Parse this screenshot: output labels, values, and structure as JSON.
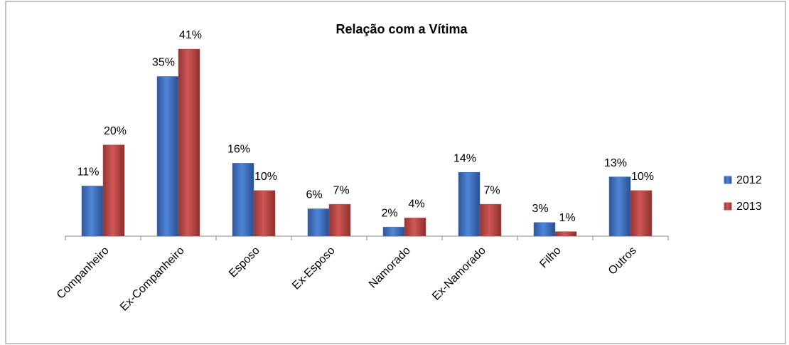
{
  "chart_data": {
    "type": "bar",
    "title": "Relação com a Vítima",
    "categories": [
      "Companheiro",
      "Ex-Companheiro",
      "Esposo",
      "Ex-Esposo",
      "Namorado",
      "Ex-Namorado",
      "Filho",
      "Outros"
    ],
    "series": [
      {
        "name": "2012",
        "color": "#4472c4",
        "values": [
          11,
          35,
          16,
          6,
          2,
          14,
          3,
          13
        ],
        "value_labels": [
          "11%",
          "35%",
          "16%",
          "6%",
          "2%",
          "14%",
          "3%",
          "13%"
        ]
      },
      {
        "name": "2013",
        "color": "#c0504d",
        "values": [
          20,
          41,
          10,
          7,
          4,
          7,
          1,
          10
        ],
        "value_labels": [
          "20%",
          "41%",
          "10%",
          "7%",
          "4%",
          "7%",
          "1%",
          "10%"
        ]
      }
    ],
    "legend": "right"
  }
}
